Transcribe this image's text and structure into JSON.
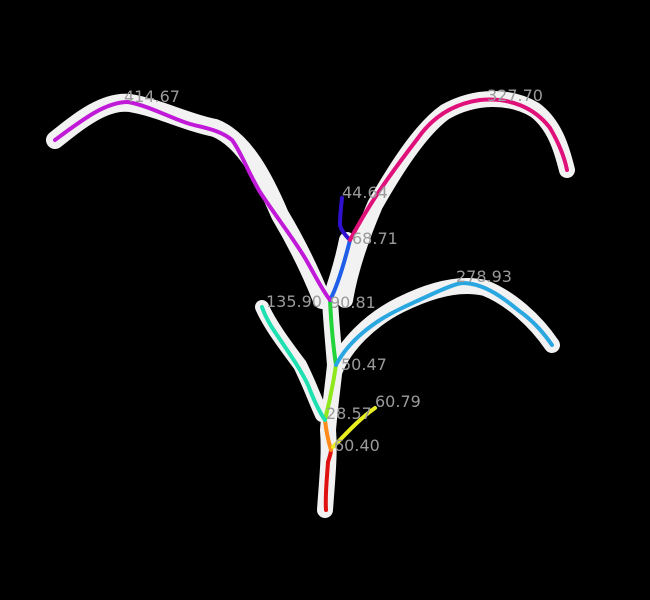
{
  "image": {
    "background_color": "#000000",
    "silhouette_color": "#f2f2f2",
    "subject": "plant-skeleton-segmentation",
    "segments": [
      {
        "id": "stem-base",
        "label": "60.40",
        "color": "#e01010"
      },
      {
        "id": "stem-lower",
        "label": "28.57",
        "color": "#ff8c1a"
      },
      {
        "id": "side-branch-small",
        "label": "60.79",
        "color": "#e8ee20"
      },
      {
        "id": "stem-mid",
        "label": "50.47",
        "color": "#8ee81c"
      },
      {
        "id": "stem-upper",
        "label": "90.81",
        "color": "#22d43a"
      },
      {
        "id": "leaf-lower-left",
        "label": "135.90",
        "color": "#1fe0b0"
      },
      {
        "id": "leaf-lower-right",
        "label": "278.93",
        "color": "#2aa7e0"
      },
      {
        "id": "stem-top",
        "label": "68.71",
        "color": "#1e5ee8"
      },
      {
        "id": "stem-tip",
        "label": "44.64",
        "color": "#3010d0"
      },
      {
        "id": "leaf-upper-right",
        "label": "327.70",
        "color": "#e0107a"
      },
      {
        "id": "leaf-upper-left",
        "label": "414.67",
        "color": "#c01ad8"
      }
    ]
  }
}
